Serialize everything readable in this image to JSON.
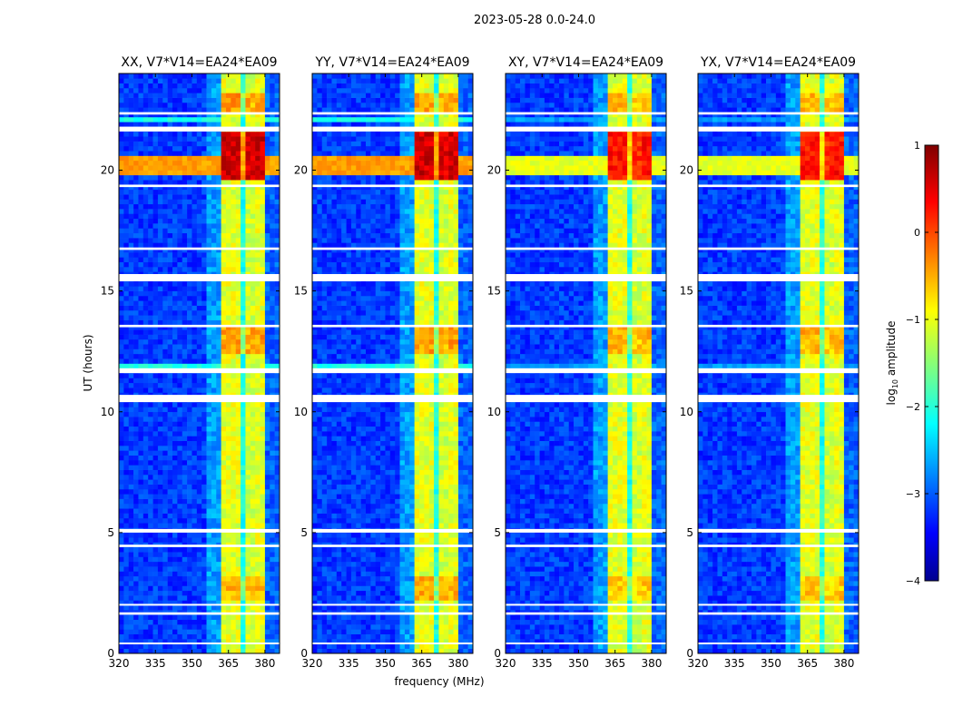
{
  "chart_data": {
    "type": "heatmap",
    "suptitle": "2023-05-28 0.0-24.0",
    "xlabel": "frequency (MHz)",
    "ylabel": "UT (hours)",
    "xlim": [
      320,
      386
    ],
    "ylim": [
      0,
      24
    ],
    "xticks": [
      320,
      335,
      350,
      365,
      380
    ],
    "yticks": [
      0,
      5,
      10,
      15,
      20
    ],
    "colorbar": {
      "label_main": "log",
      "label_sub": "10",
      "label_rest": " amplitude",
      "range": [
        -4,
        1
      ],
      "ticks": [
        1,
        0,
        -1,
        -2,
        -3,
        -4
      ],
      "colormap": "jet"
    },
    "frequency_profile": [
      {
        "from": 320,
        "to": 357,
        "value": -3.1
      },
      {
        "from": 357,
        "to": 362,
        "value": -2.6
      },
      {
        "from": 362,
        "to": 366,
        "value": -1.0
      },
      {
        "from": 366,
        "to": 367,
        "value": -2.0
      },
      {
        "from": 367,
        "to": 371,
        "value": -1.0
      },
      {
        "from": 371,
        "to": 372,
        "value": -2.0
      },
      {
        "from": 372,
        "to": 376,
        "value": -1.1
      },
      {
        "from": 376,
        "to": 377,
        "value": -2.0
      },
      {
        "from": 377,
        "to": 381,
        "value": -1.0
      },
      {
        "from": 381,
        "to": 386,
        "value": -2.9
      }
    ],
    "rfi_boost_intervals_hours": [
      {
        "from": 19.6,
        "to": 21.6,
        "boost": 1.6
      },
      {
        "from": 12.4,
        "to": 13.6,
        "boost": 0.6
      },
      {
        "from": 2.2,
        "to": 3.3,
        "boost": 0.5
      },
      {
        "from": 22.4,
        "to": 23.2,
        "boost": 0.6
      }
    ],
    "broadband_intervals_hours": [
      {
        "from": 19.9,
        "to": 20.7,
        "value": -0.4
      },
      {
        "from": 22.0,
        "to": 22.3,
        "value": -2.0
      },
      {
        "from": 11.8,
        "to": 12.0,
        "value": -2.0
      }
    ],
    "flagged_intervals_hours": [
      [
        0.4,
        0.45
      ],
      [
        1.6,
        1.7
      ],
      [
        2.0,
        2.05
      ],
      [
        4.4,
        4.5
      ],
      [
        5.0,
        5.15
      ],
      [
        10.4,
        10.7
      ],
      [
        11.6,
        11.8
      ],
      [
        13.5,
        13.6
      ],
      [
        15.4,
        15.7
      ],
      [
        16.7,
        16.8
      ],
      [
        19.3,
        19.4
      ],
      [
        21.6,
        21.8
      ],
      [
        22.3,
        22.4
      ]
    ],
    "panels": [
      {
        "title": "XX, V7*V14=EA24*EA09",
        "rfi_scale": 1.0,
        "broadband_scale": 1.0
      },
      {
        "title": "YY, V7*V14=EA24*EA09",
        "rfi_scale": 1.0,
        "broadband_scale": 1.0
      },
      {
        "title": "XY, V7*V14=EA24*EA09",
        "rfi_scale": 0.8,
        "broadband_scale": 0.6
      },
      {
        "title": "YX, V7*V14=EA24*EA09",
        "rfi_scale": 0.8,
        "broadband_scale": 0.6
      }
    ]
  }
}
